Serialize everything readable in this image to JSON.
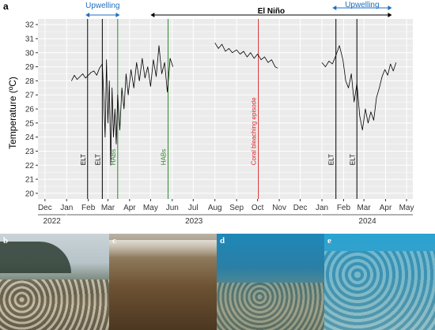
{
  "panel_labels": {
    "a": "a",
    "b": "b",
    "c": "c",
    "d": "d",
    "e": "e"
  },
  "chart_data": {
    "type": "line",
    "ylabel": "Temperature (ºC)",
    "ylim": [
      19.6,
      32.4
    ],
    "yticks": [
      20,
      21,
      22,
      23,
      24,
      25,
      26,
      27,
      28,
      29,
      30,
      31,
      32
    ],
    "xlim": [
      "2022-11-21",
      "2024-05-10"
    ],
    "month_ticks": [
      {
        "date": "2022-12-01",
        "label": "Dec"
      },
      {
        "date": "2023-01-01",
        "label": "Jan"
      },
      {
        "date": "2023-02-01",
        "label": "Feb"
      },
      {
        "date": "2023-03-01",
        "label": "Mar"
      },
      {
        "date": "2023-04-01",
        "label": "Apr"
      },
      {
        "date": "2023-05-01",
        "label": "May"
      },
      {
        "date": "2023-06-01",
        "label": "Jun"
      },
      {
        "date": "2023-07-01",
        "label": "Jul"
      },
      {
        "date": "2023-08-01",
        "label": "Aug"
      },
      {
        "date": "2023-09-01",
        "label": "Sep"
      },
      {
        "date": "2023-10-01",
        "label": "Oct"
      },
      {
        "date": "2023-11-01",
        "label": "Nov"
      },
      {
        "date": "2023-12-01",
        "label": "Dec"
      },
      {
        "date": "2024-01-01",
        "label": "Jan"
      },
      {
        "date": "2024-02-01",
        "label": "Feb"
      },
      {
        "date": "2024-03-01",
        "label": "Mar"
      },
      {
        "date": "2024-04-01",
        "label": "Apr"
      },
      {
        "date": "2024-05-01",
        "label": "May"
      }
    ],
    "year_groups": [
      {
        "label": "2022",
        "start": "2022-11-21",
        "end": "2022-12-31"
      },
      {
        "label": "2023",
        "start": "2023-01-01",
        "end": "2023-12-31"
      },
      {
        "label": "2024",
        "start": "2024-01-01",
        "end": "2024-05-10"
      }
    ],
    "series": [
      {
        "color": "#000000",
        "segments": [
          [
            [
              "2023-01-08",
              28.0
            ],
            [
              "2023-01-12",
              28.4
            ],
            [
              "2023-01-16",
              28.1
            ],
            [
              "2023-01-20",
              28.3
            ],
            [
              "2023-01-24",
              28.5
            ],
            [
              "2023-01-28",
              28.2
            ],
            [
              "2023-02-01",
              28.4
            ],
            [
              "2023-02-05",
              28.6
            ],
            [
              "2023-02-09",
              28.7
            ],
            [
              "2023-02-13",
              28.4
            ],
            [
              "2023-02-17",
              28.9
            ],
            [
              "2023-02-21",
              29.2
            ],
            [
              "2023-02-23",
              27.0
            ],
            [
              "2023-02-25",
              24.0
            ],
            [
              "2023-02-27",
              29.5
            ],
            [
              "2023-03-01",
              25.0
            ],
            [
              "2023-03-03",
              28.0
            ],
            [
              "2023-03-05",
              22.0
            ],
            [
              "2023-03-07",
              27.5
            ],
            [
              "2023-03-09",
              24.0
            ],
            [
              "2023-03-11",
              26.0
            ],
            [
              "2023-03-13",
              23.5
            ],
            [
              "2023-03-15",
              27.0
            ],
            [
              "2023-03-18",
              24.5
            ],
            [
              "2023-03-21",
              27.5
            ],
            [
              "2023-03-24",
              26.0
            ],
            [
              "2023-03-27",
              28.5
            ],
            [
              "2023-03-30",
              27.0
            ],
            [
              "2023-04-03",
              28.8
            ],
            [
              "2023-04-07",
              27.5
            ],
            [
              "2023-04-11",
              29.3
            ],
            [
              "2023-04-15",
              28.0
            ],
            [
              "2023-04-19",
              29.6
            ],
            [
              "2023-04-23",
              28.2
            ],
            [
              "2023-04-27",
              29.0
            ],
            [
              "2023-05-01",
              27.6
            ],
            [
              "2023-05-05",
              29.5
            ],
            [
              "2023-05-09",
              28.3
            ],
            [
              "2023-05-13",
              30.5
            ],
            [
              "2023-05-17",
              28.5
            ],
            [
              "2023-05-21",
              29.3
            ],
            [
              "2023-05-25",
              27.2
            ],
            [
              "2023-05-29",
              29.6
            ],
            [
              "2023-06-02",
              29.0
            ]
          ],
          [
            [
              "2023-08-01",
              30.7
            ],
            [
              "2023-08-06",
              30.3
            ],
            [
              "2023-08-11",
              30.6
            ],
            [
              "2023-08-16",
              30.1
            ],
            [
              "2023-08-21",
              30.3
            ],
            [
              "2023-08-26",
              30.0
            ],
            [
              "2023-09-01",
              30.2
            ],
            [
              "2023-09-06",
              29.9
            ],
            [
              "2023-09-11",
              30.1
            ],
            [
              "2023-09-16",
              29.7
            ],
            [
              "2023-09-21",
              30.0
            ],
            [
              "2023-09-26",
              29.6
            ],
            [
              "2023-10-01",
              29.9
            ],
            [
              "2023-10-06",
              29.5
            ],
            [
              "2023-10-11",
              29.7
            ],
            [
              "2023-10-16",
              29.3
            ],
            [
              "2023-10-21",
              29.5
            ],
            [
              "2023-10-26",
              29.0
            ],
            [
              "2023-10-30",
              28.9
            ]
          ],
          [
            [
              "2024-01-01",
              29.3
            ],
            [
              "2024-01-06",
              29.0
            ],
            [
              "2024-01-11",
              29.4
            ],
            [
              "2024-01-16",
              29.2
            ],
            [
              "2024-01-21",
              29.8
            ],
            [
              "2024-01-26",
              30.5
            ],
            [
              "2024-01-31",
              29.5
            ],
            [
              "2024-02-04",
              28.0
            ],
            [
              "2024-02-08",
              27.5
            ],
            [
              "2024-02-12",
              28.5
            ],
            [
              "2024-02-16",
              26.5
            ],
            [
              "2024-02-20",
              27.8
            ],
            [
              "2024-02-24",
              25.5
            ],
            [
              "2024-02-28",
              24.5
            ],
            [
              "2024-03-03",
              26.0
            ],
            [
              "2024-03-07",
              25.0
            ],
            [
              "2024-03-11",
              25.8
            ],
            [
              "2024-03-15",
              25.2
            ],
            [
              "2024-03-19",
              26.8
            ],
            [
              "2024-03-23",
              27.5
            ],
            [
              "2024-03-27",
              28.3
            ],
            [
              "2024-03-31",
              28.8
            ],
            [
              "2024-04-04",
              28.4
            ],
            [
              "2024-04-08",
              29.2
            ],
            [
              "2024-04-12",
              28.7
            ],
            [
              "2024-04-16",
              29.3
            ]
          ]
        ]
      }
    ],
    "vlines": [
      {
        "date": "2023-01-31",
        "label": "ELT",
        "color": "#000000"
      },
      {
        "date": "2023-02-21",
        "label": "ELT",
        "color": "#000000"
      },
      {
        "date": "2023-03-15",
        "label": "HABs",
        "color": "#2e8b2e"
      },
      {
        "date": "2023-05-26",
        "label": "HABs",
        "color": "#2e8b2e"
      },
      {
        "date": "2023-10-02",
        "label": "Coral bleaching episode",
        "color": "#d62728"
      },
      {
        "date": "2024-01-21",
        "label": "ELT",
        "color": "#000000"
      },
      {
        "date": "2024-02-20",
        "label": "ELT",
        "color": "#000000"
      }
    ],
    "spans": [
      {
        "label": "Upwelling",
        "start": "2023-01-28",
        "end": "2023-03-18",
        "color": "#1f6fc0"
      },
      {
        "label": "El Niño",
        "start": "2023-05-01",
        "end": "2024-04-10",
        "color": "#000000"
      },
      {
        "label": "Upwelling",
        "start": "2024-01-16",
        "end": "2024-04-10",
        "color": "#1f6fc0"
      }
    ],
    "grid": true,
    "background": "#ebebeb"
  }
}
